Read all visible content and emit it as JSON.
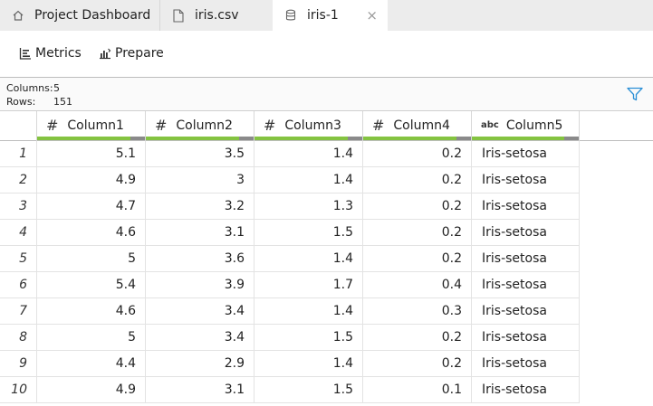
{
  "tabs": [
    {
      "label": "Project Dashboard",
      "icon": "home-icon"
    },
    {
      "label": "iris.csv",
      "icon": "file-icon"
    },
    {
      "label": "iris-1",
      "icon": "dataset-icon",
      "close": "×"
    }
  ],
  "toolbar": {
    "metrics_label": "Metrics",
    "prepare_label": "Prepare"
  },
  "info": {
    "columns_label": "Columns:",
    "columns_value": "5",
    "rows_label": "Rows:",
    "rows_value": "151"
  },
  "columns": [
    {
      "type_icon": "#",
      "name": "Column1"
    },
    {
      "type_icon": "#",
      "name": "Column2"
    },
    {
      "type_icon": "#",
      "name": "Column3"
    },
    {
      "type_icon": "#",
      "name": "Column4"
    },
    {
      "type_icon": "abc",
      "name": "Column5"
    }
  ],
  "colors": {
    "valid_bar": "#84c341",
    "invalid_bar": "#8a8a8a",
    "filter_icon": "#2a8fd6"
  },
  "rows": [
    {
      "index": "1",
      "cells": [
        "5.1",
        "3.5",
        "1.4",
        "0.2",
        "Iris-setosa"
      ]
    },
    {
      "index": "2",
      "cells": [
        "4.9",
        "3",
        "1.4",
        "0.2",
        "Iris-setosa"
      ]
    },
    {
      "index": "3",
      "cells": [
        "4.7",
        "3.2",
        "1.3",
        "0.2",
        "Iris-setosa"
      ]
    },
    {
      "index": "4",
      "cells": [
        "4.6",
        "3.1",
        "1.5",
        "0.2",
        "Iris-setosa"
      ]
    },
    {
      "index": "5",
      "cells": [
        "5",
        "3.6",
        "1.4",
        "0.2",
        "Iris-setosa"
      ]
    },
    {
      "index": "6",
      "cells": [
        "5.4",
        "3.9",
        "1.7",
        "0.4",
        "Iris-setosa"
      ]
    },
    {
      "index": "7",
      "cells": [
        "4.6",
        "3.4",
        "1.4",
        "0.3",
        "Iris-setosa"
      ]
    },
    {
      "index": "8",
      "cells": [
        "5",
        "3.4",
        "1.5",
        "0.2",
        "Iris-setosa"
      ]
    },
    {
      "index": "9",
      "cells": [
        "4.4",
        "2.9",
        "1.4",
        "0.2",
        "Iris-setosa"
      ]
    },
    {
      "index": "10",
      "cells": [
        "4.9",
        "3.1",
        "1.5",
        "0.1",
        "Iris-setosa"
      ]
    }
  ]
}
